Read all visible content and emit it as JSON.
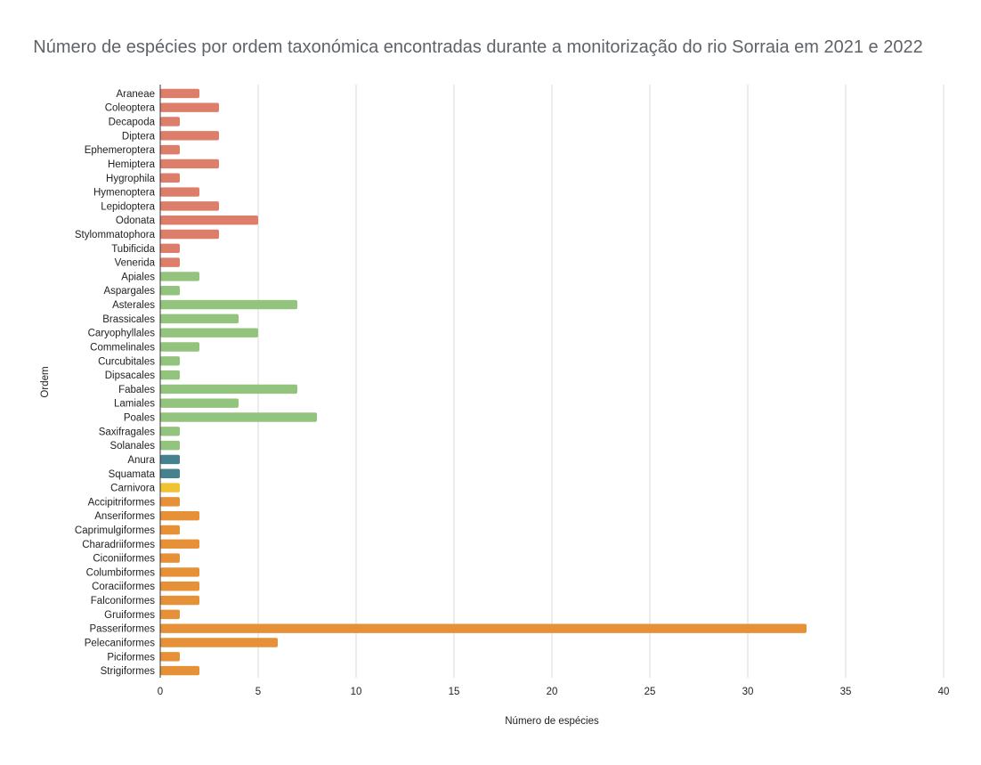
{
  "chart_data": {
    "type": "bar",
    "orientation": "horizontal",
    "title": "Número de espécies por ordem taxonómica encontradas durante a monitorização do rio Sorraia em 2021 e 2022",
    "xlabel": "Número de espécies",
    "ylabel": "Ordem",
    "xlim": [
      0,
      40
    ],
    "xticks": [
      "0",
      "5",
      "10",
      "15",
      "20",
      "25",
      "30",
      "35",
      "40"
    ],
    "grid": true,
    "legend": "none",
    "categories": [
      "Araneae",
      "Coleoptera",
      "Decapoda",
      "Diptera",
      "Ephemeroptera",
      "Hemiptera",
      "Hygrophila",
      "Hymenoptera",
      "Lepidoptera",
      "Odonata",
      "Stylommatophora",
      "Tubificida",
      "Venerida",
      "Apiales",
      "Aspargales",
      "Asterales",
      "Brassicales",
      "Caryophyllales",
      "Commelinales",
      "Curcubitales",
      "Dipsacales",
      "Fabales",
      "Lamiales",
      "Poales",
      "Saxifragales",
      "Solanales",
      "Anura",
      "Squamata",
      "Carnivora",
      "Accipitriformes",
      "Anseriformes",
      "Caprimulgiformes",
      "Charadriiformes",
      "Ciconiiformes",
      "Columbiformes",
      "Coraciiformes",
      "Falconiformes",
      "Gruiformes",
      "Passeriformes",
      "Pelecaniformes",
      "Piciformes",
      "Strigiformes"
    ],
    "values": [
      2,
      3,
      1,
      3,
      1,
      3,
      1,
      2,
      3,
      5,
      3,
      1,
      1,
      2,
      1,
      7,
      4,
      5,
      2,
      1,
      1,
      7,
      4,
      8,
      1,
      1,
      1,
      1,
      1,
      1,
      2,
      1,
      2,
      1,
      2,
      2,
      2,
      1,
      33,
      6,
      1,
      2
    ],
    "colors": [
      "#dd7e6b",
      "#dd7e6b",
      "#dd7e6b",
      "#dd7e6b",
      "#dd7e6b",
      "#dd7e6b",
      "#dd7e6b",
      "#dd7e6b",
      "#dd7e6b",
      "#dd7e6b",
      "#dd7e6b",
      "#dd7e6b",
      "#dd7e6b",
      "#93c47d",
      "#93c47d",
      "#93c47d",
      "#93c47d",
      "#93c47d",
      "#93c47d",
      "#93c47d",
      "#93c47d",
      "#93c47d",
      "#93c47d",
      "#93c47d",
      "#93c47d",
      "#93c47d",
      "#45818e",
      "#45818e",
      "#f1c232",
      "#e69138",
      "#e69138",
      "#e69138",
      "#e69138",
      "#e69138",
      "#e69138",
      "#e69138",
      "#e69138",
      "#e69138",
      "#e69138",
      "#e69138",
      "#e69138",
      "#e69138"
    ]
  }
}
